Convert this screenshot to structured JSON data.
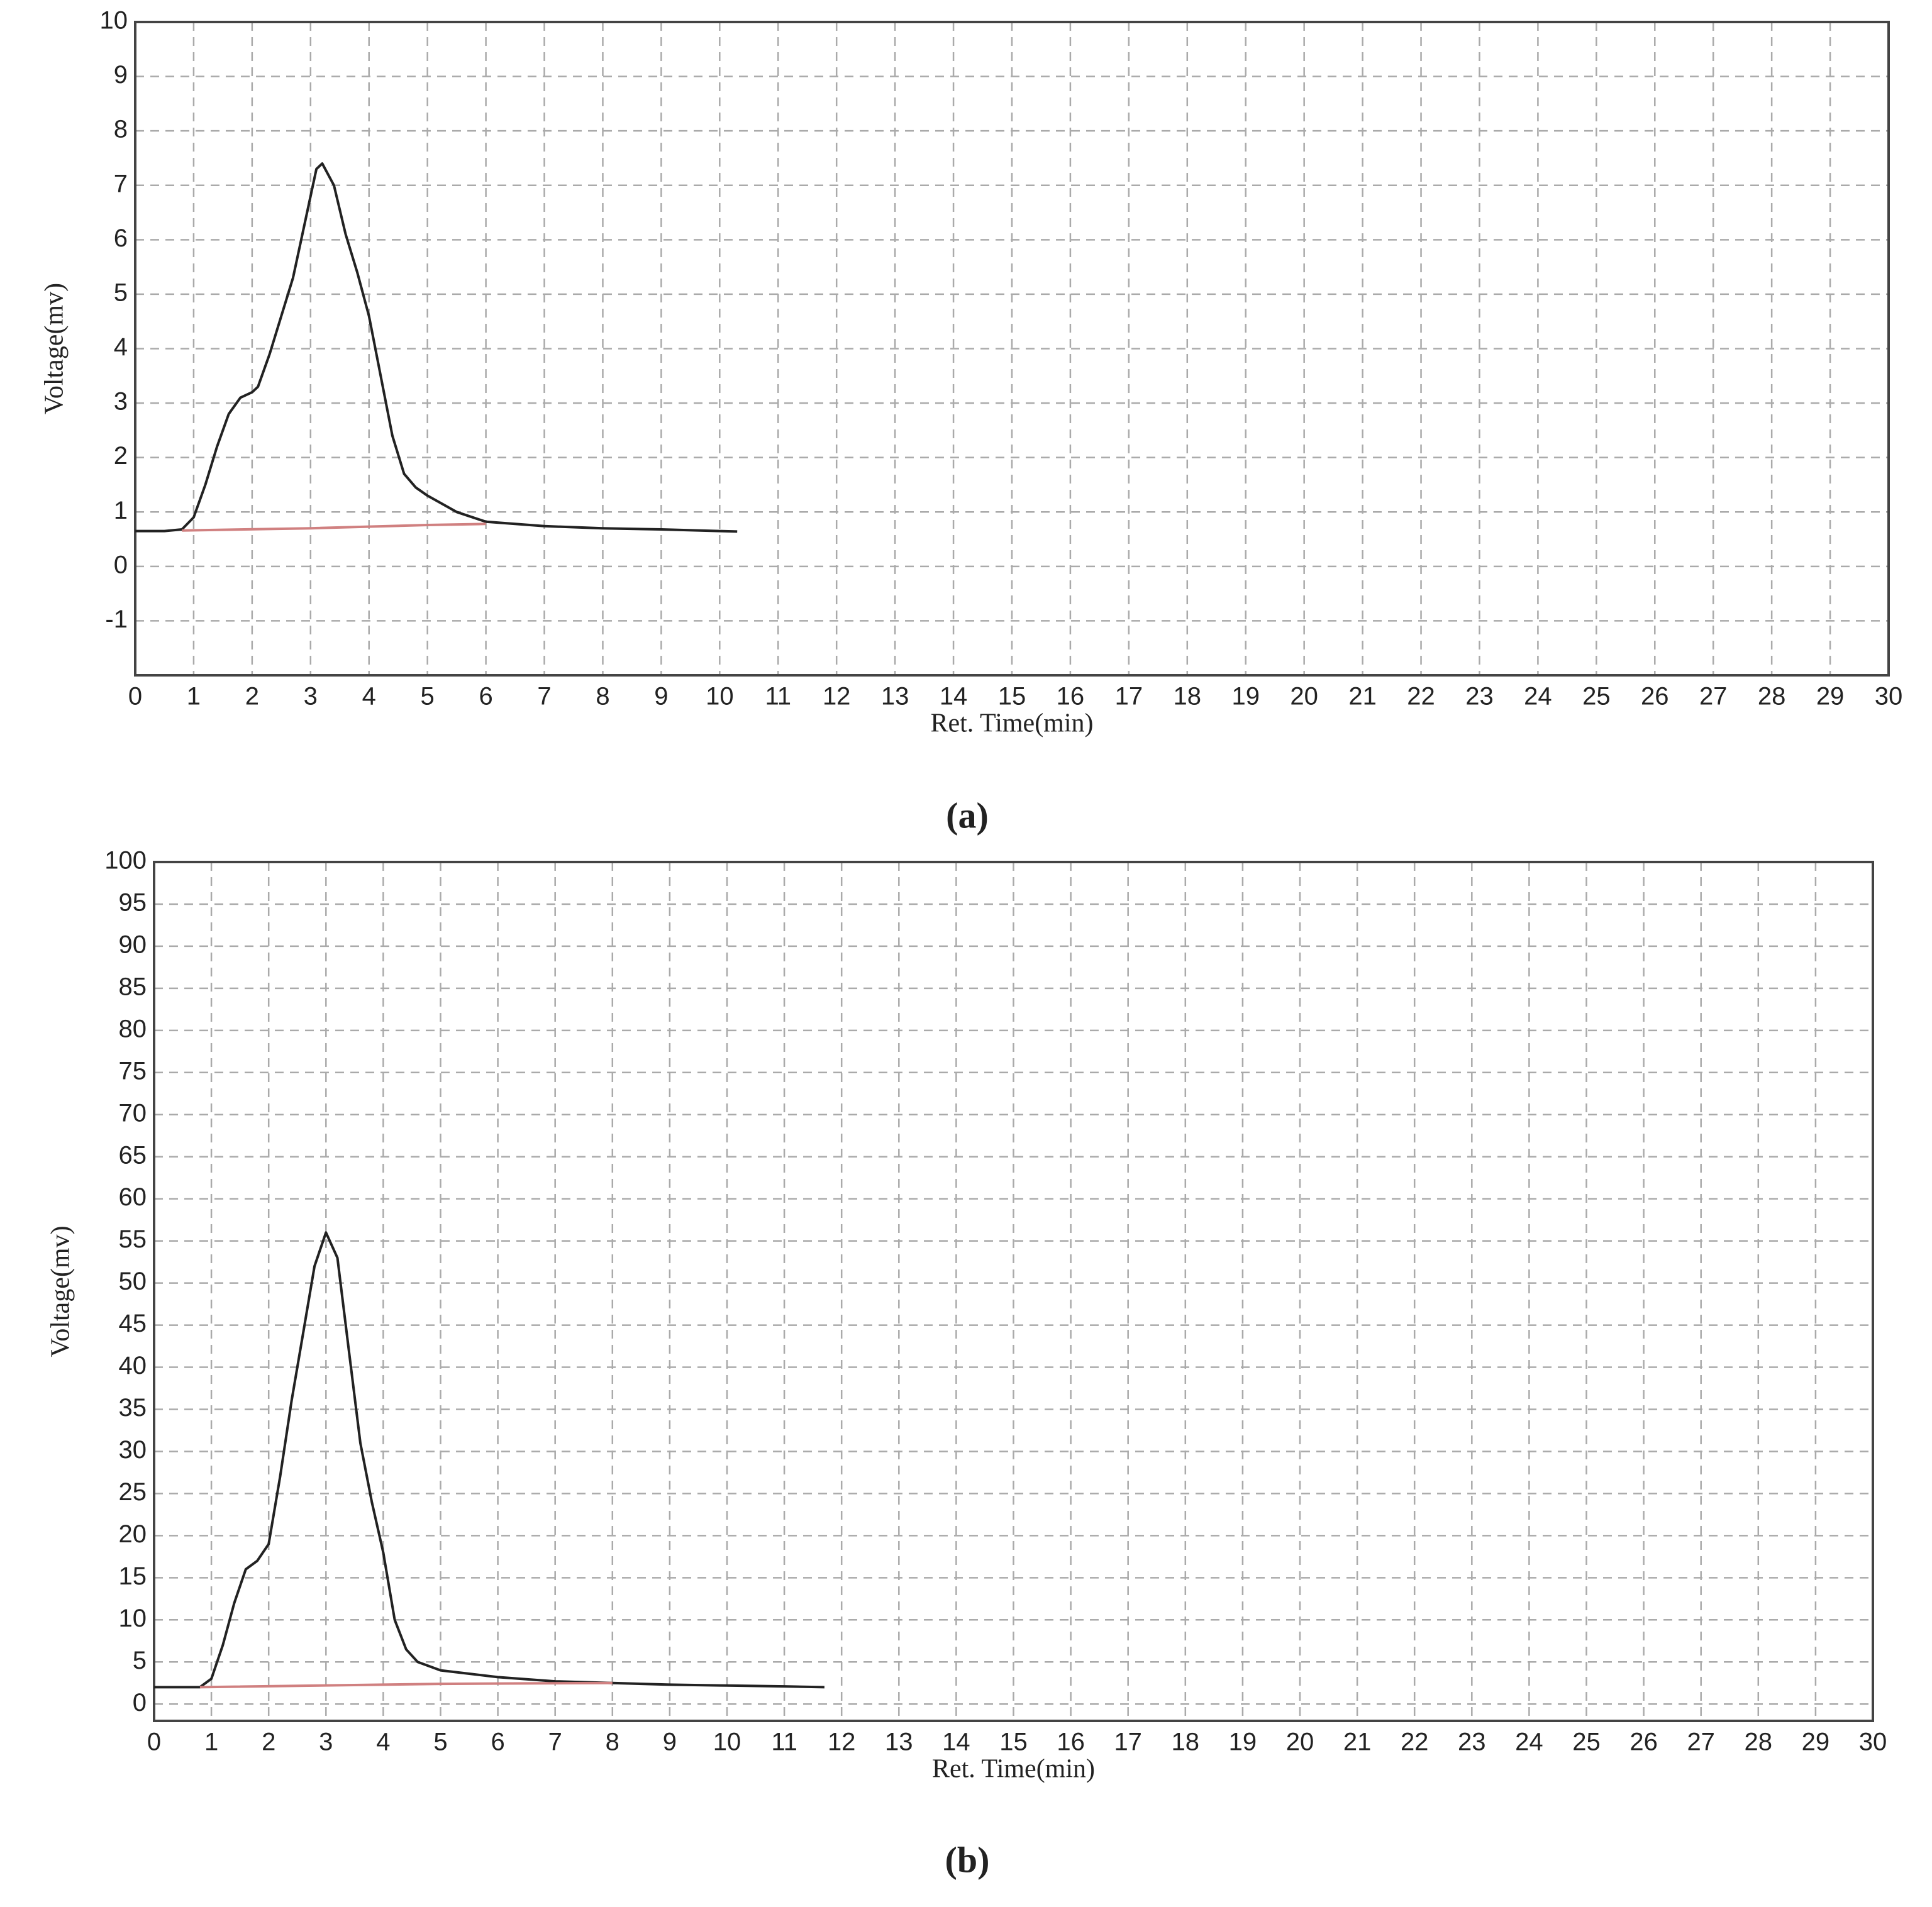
{
  "chart_data": [
    {
      "type": "line",
      "caption": "(a)",
      "x_label": "Ret. Time(min)",
      "y_label": "Voltage(mv)",
      "xlim": [
        0,
        30
      ],
      "ylim": [
        -2,
        10
      ],
      "xticks": [
        0,
        1,
        2,
        3,
        4,
        5,
        6,
        7,
        8,
        9,
        10,
        11,
        12,
        13,
        14,
        15,
        16,
        17,
        18,
        19,
        20,
        21,
        22,
        23,
        24,
        25,
        26,
        27,
        28,
        29,
        30
      ],
      "yticks": [
        -1,
        0,
        1,
        2,
        3,
        4,
        5,
        6,
        7,
        8,
        9,
        10
      ],
      "grid": true,
      "series": [
        {
          "color": "#222222",
          "x": [
            0,
            0.5,
            0.8,
            1.0,
            1.2,
            1.4,
            1.6,
            1.8,
            2.0,
            2.1,
            2.3,
            2.5,
            2.7,
            2.9,
            3.1,
            3.2,
            3.4,
            3.6,
            3.8,
            4.0,
            4.2,
            4.4,
            4.6,
            4.8,
            5.0,
            5.5,
            6.0,
            7,
            8,
            9,
            10,
            10.3
          ],
          "values": [
            0.65,
            0.65,
            0.68,
            0.9,
            1.5,
            2.2,
            2.8,
            3.1,
            3.2,
            3.3,
            3.9,
            4.6,
            5.3,
            6.3,
            7.3,
            7.4,
            7.0,
            6.1,
            5.4,
            4.6,
            3.5,
            2.4,
            1.7,
            1.45,
            1.3,
            1.0,
            0.82,
            0.74,
            0.7,
            0.68,
            0.65,
            0.64
          ]
        },
        {
          "color": "#d08080",
          "x": [
            0.8,
            3,
            5,
            6
          ],
          "values": [
            0.66,
            0.7,
            0.76,
            0.78
          ]
        }
      ]
    },
    {
      "type": "line",
      "caption": "(b)",
      "x_label": "Ret. Time(min)",
      "y_label": "Voltage(mv)",
      "xlim": [
        0,
        30
      ],
      "ylim": [
        -2,
        100
      ],
      "xticks": [
        0,
        1,
        2,
        3,
        4,
        5,
        6,
        7,
        8,
        9,
        10,
        11,
        12,
        13,
        14,
        15,
        16,
        17,
        18,
        19,
        20,
        21,
        22,
        23,
        24,
        25,
        26,
        27,
        28,
        29,
        30
      ],
      "yticks": [
        0,
        5,
        10,
        15,
        20,
        25,
        30,
        35,
        40,
        45,
        50,
        55,
        60,
        65,
        70,
        75,
        80,
        85,
        90,
        95,
        100
      ],
      "grid": true,
      "series": [
        {
          "color": "#222222",
          "x": [
            0,
            0.8,
            1.0,
            1.2,
            1.4,
            1.6,
            1.8,
            2.0,
            2.2,
            2.4,
            2.6,
            2.8,
            3.0,
            3.2,
            3.4,
            3.6,
            3.8,
            4.0,
            4.2,
            4.4,
            4.6,
            5.0,
            6,
            7,
            8,
            9,
            10,
            11,
            11.7
          ],
          "values": [
            2,
            2,
            3,
            7,
            12,
            16,
            17,
            19,
            27,
            36,
            44,
            52,
            56,
            53,
            42,
            31,
            24,
            18,
            10,
            6.5,
            5,
            4,
            3.2,
            2.7,
            2.5,
            2.3,
            2.2,
            2.1,
            2.0
          ]
        },
        {
          "color": "#d08080",
          "x": [
            0.8,
            5,
            8
          ],
          "values": [
            2,
            2.4,
            2.5
          ]
        }
      ]
    }
  ]
}
